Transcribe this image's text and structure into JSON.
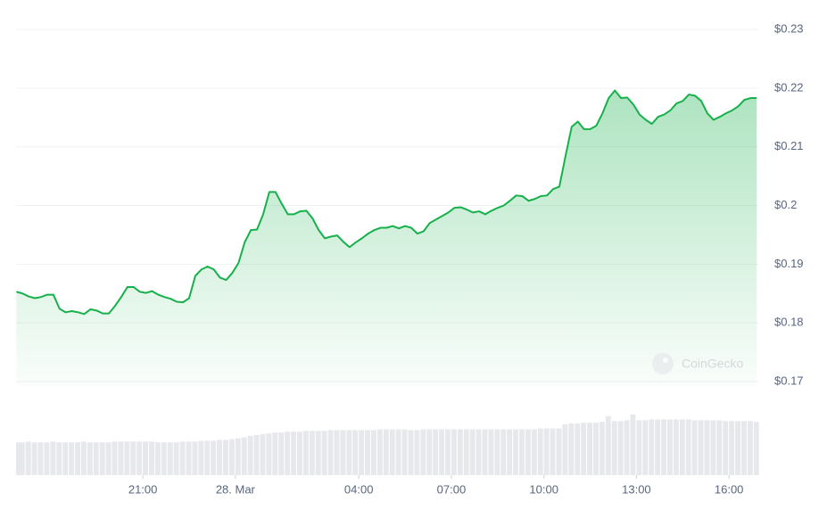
{
  "chart_data": {
    "type": "line",
    "watermark": "CoinGecko",
    "color": "#16b14b",
    "grid": true,
    "xlim": [
      16.89,
      40.95
    ],
    "xticks": [
      {
        "value": 21,
        "label": "21:00"
      },
      {
        "value": 24,
        "label": "28. Mar"
      },
      {
        "value": 28,
        "label": "04:00"
      },
      {
        "value": 31,
        "label": "07:00"
      },
      {
        "value": 34,
        "label": "10:00"
      },
      {
        "value": 37,
        "label": "13:00"
      },
      {
        "value": 40,
        "label": "16:00"
      }
    ],
    "ylim": [
      0.17,
      0.23
    ],
    "yticks": [
      {
        "value": 0.23,
        "label": "$0.23"
      },
      {
        "value": 0.22,
        "label": "$0.22"
      },
      {
        "value": 0.21,
        "label": "$0.21"
      },
      {
        "value": 0.2,
        "label": "$0.2"
      },
      {
        "value": 0.19,
        "label": "$0.19"
      },
      {
        "value": 0.18,
        "label": "$0.18"
      },
      {
        "value": 0.17,
        "label": "$0.17"
      }
    ],
    "x": [
      16.9,
      17.1,
      17.3,
      17.5,
      17.7,
      17.9,
      18.1,
      18.3,
      18.5,
      18.7,
      18.9,
      19.1,
      19.3,
      19.5,
      19.7,
      19.9,
      20.1,
      20.3,
      20.5,
      20.7,
      20.9,
      21.1,
      21.3,
      21.5,
      21.7,
      21.9,
      22.1,
      22.3,
      22.5,
      22.7,
      22.9,
      23.1,
      23.3,
      23.5,
      23.7,
      23.9,
      24.1,
      24.3,
      24.5,
      24.7,
      24.9,
      25.1,
      25.3,
      25.5,
      25.7,
      25.9,
      26.1,
      26.3,
      26.5,
      26.7,
      26.9,
      27.1,
      27.3,
      27.5,
      27.7,
      27.9,
      28.1,
      28.3,
      28.5,
      28.7,
      28.9,
      29.1,
      29.3,
      29.5,
      29.7,
      29.9,
      30.1,
      30.3,
      30.5,
      30.7,
      30.9,
      31.1,
      31.3,
      31.5,
      31.7,
      31.9,
      32.1,
      32.3,
      32.5,
      32.7,
      32.9,
      33.1,
      33.3,
      33.5,
      33.7,
      33.9,
      34.1,
      34.3,
      34.5,
      34.7,
      34.9,
      35.1,
      35.3,
      35.5,
      35.7,
      35.9,
      36.1,
      36.3,
      36.5,
      36.7,
      36.9,
      37.1,
      37.3,
      37.5,
      37.7,
      37.9,
      38.1,
      38.3,
      38.5,
      38.7,
      38.9,
      39.1,
      39.3,
      39.5,
      39.7,
      39.9,
      40.1,
      40.3,
      40.5,
      40.7,
      40.9
    ],
    "values": [
      0.1853,
      0.185,
      0.1845,
      0.1842,
      0.1844,
      0.1848,
      0.1848,
      0.1824,
      0.1818,
      0.182,
      0.1818,
      0.1815,
      0.1823,
      0.1821,
      0.1816,
      0.1816,
      0.1829,
      0.1844,
      0.1861,
      0.1861,
      0.1853,
      0.1851,
      0.1854,
      0.1848,
      0.1844,
      0.1841,
      0.1836,
      0.1835,
      0.1842,
      0.188,
      0.1891,
      0.1896,
      0.1891,
      0.1877,
      0.1873,
      0.1885,
      0.1902,
      0.1937,
      0.1958,
      0.1959,
      0.1985,
      0.2023,
      0.2023,
      0.2003,
      0.1985,
      0.1985,
      0.199,
      0.1991,
      0.1978,
      0.1958,
      0.1944,
      0.1947,
      0.1949,
      0.1938,
      0.1929,
      0.1937,
      0.1944,
      0.1952,
      0.1958,
      0.1962,
      0.1962,
      0.1965,
      0.1961,
      0.1965,
      0.1962,
      0.1952,
      0.1956,
      0.197,
      0.1976,
      0.1982,
      0.1988,
      0.1996,
      0.1997,
      0.1993,
      0.1988,
      0.199,
      0.1985,
      0.1991,
      0.1996,
      0.2,
      0.2008,
      0.2017,
      0.2016,
      0.2008,
      0.2011,
      0.2016,
      0.2017,
      0.2028,
      0.2032,
      0.2084,
      0.2134,
      0.2143,
      0.213,
      0.213,
      0.2136,
      0.2157,
      0.2183,
      0.2196,
      0.2183,
      0.2184,
      0.2172,
      0.2155,
      0.2146,
      0.2139,
      0.2151,
      0.2155,
      0.2162,
      0.2174,
      0.2178,
      0.2189,
      0.2187,
      0.2178,
      0.2157,
      0.2146,
      0.2151,
      0.2157,
      0.2162,
      0.2169,
      0.218,
      0.2183,
      0.2183
    ],
    "volume": [
      40,
      40,
      41,
      40,
      40,
      40,
      41,
      40,
      40,
      40,
      40,
      41,
      40,
      40,
      40,
      40,
      41,
      41,
      41,
      41,
      41,
      41,
      41,
      40,
      40,
      40,
      40,
      41,
      41,
      41,
      42,
      42,
      42,
      43,
      43,
      44,
      45,
      46,
      48,
      49,
      50,
      51,
      52,
      52,
      53,
      53,
      53,
      54,
      54,
      54,
      54,
      55,
      55,
      55,
      55,
      55,
      55,
      55,
      55,
      56,
      56,
      56,
      56,
      56,
      55,
      55,
      56,
      56,
      56,
      56,
      56,
      56,
      56,
      56,
      56,
      56,
      56,
      56,
      56,
      56,
      56,
      56,
      56,
      56,
      56,
      57,
      57,
      57,
      57,
      62,
      63,
      63,
      64,
      64,
      64,
      65,
      72,
      66,
      66,
      67,
      74,
      67,
      67,
      68,
      68,
      68,
      68,
      68,
      68,
      68,
      67,
      67,
      67,
      67,
      67,
      66,
      66,
      66,
      66,
      66,
      65
    ]
  }
}
